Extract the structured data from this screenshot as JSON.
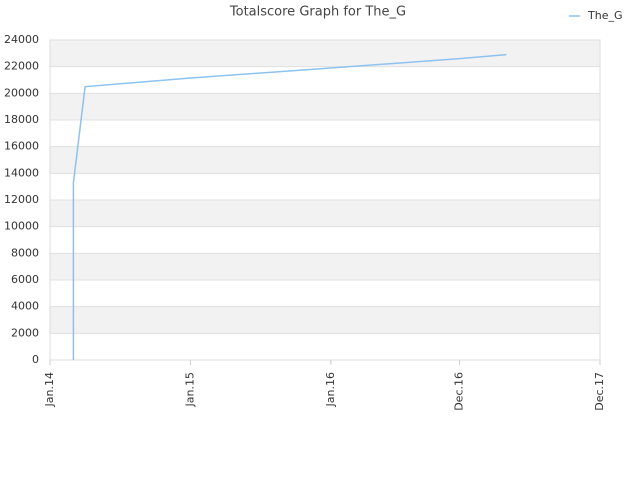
{
  "chart_data": {
    "type": "line",
    "title": "Totalscore Graph for The_G",
    "x": [
      "Mar.14",
      "Mar.14",
      "Mar.14",
      "Mar.14",
      "Mar.14",
      "Mar.14",
      "Mar.14",
      "Apr.14",
      "Jan.15",
      "Jan.16",
      "Dec.16",
      "Apr.17"
    ],
    "series": [
      {
        "name": "The_G",
        "color": "#8ec2ef",
        "values": [
          0,
          2900,
          4100,
          6200,
          8800,
          10600,
          13300,
          20500,
          21150,
          21900,
          22600,
          22900
        ]
      }
    ],
    "xlim": [
      "Jan.14",
      "Dec.17"
    ],
    "xticks": [
      "Jan.14",
      "Jan.15",
      "Jan.16",
      "Dec.16",
      "Dec.17"
    ],
    "ylim": [
      0,
      24000
    ],
    "yticks": [
      0,
      2000,
      4000,
      6000,
      8000,
      10000,
      12000,
      14000,
      16000,
      18000,
      20000,
      22000,
      24000
    ],
    "grid": true,
    "legend": "top-right"
  }
}
